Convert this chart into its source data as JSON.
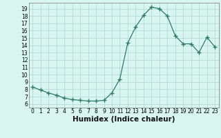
{
  "x": [
    0,
    1,
    2,
    3,
    4,
    5,
    6,
    7,
    8,
    9,
    10,
    11,
    12,
    13,
    14,
    15,
    16,
    17,
    18,
    19,
    20,
    21,
    22,
    23
  ],
  "y": [
    8.3,
    7.9,
    7.5,
    7.2,
    6.8,
    6.6,
    6.5,
    6.4,
    6.4,
    6.5,
    7.5,
    9.4,
    14.3,
    16.5,
    18.1,
    19.2,
    19.0,
    18.0,
    15.3,
    14.2,
    14.2,
    13.0,
    15.1,
    13.8
  ],
  "line_color": "#2d7a6b",
  "marker": "+",
  "marker_size": 4,
  "marker_color": "#2d7a6b",
  "bg_color": "#d8f5f0",
  "grid_color": "#aad8d0",
  "xlabel": "Humidex (Indice chaleur)",
  "xlim": [
    -0.5,
    23.5
  ],
  "ylim": [
    5.5,
    19.8
  ],
  "yticks": [
    6,
    7,
    8,
    9,
    10,
    11,
    12,
    13,
    14,
    15,
    16,
    17,
    18,
    19
  ],
  "xticks": [
    0,
    1,
    2,
    3,
    4,
    5,
    6,
    7,
    8,
    9,
    10,
    11,
    12,
    13,
    14,
    15,
    16,
    17,
    18,
    19,
    20,
    21,
    22,
    23
  ],
  "tick_fontsize": 5.5,
  "xlabel_fontsize": 7.5
}
